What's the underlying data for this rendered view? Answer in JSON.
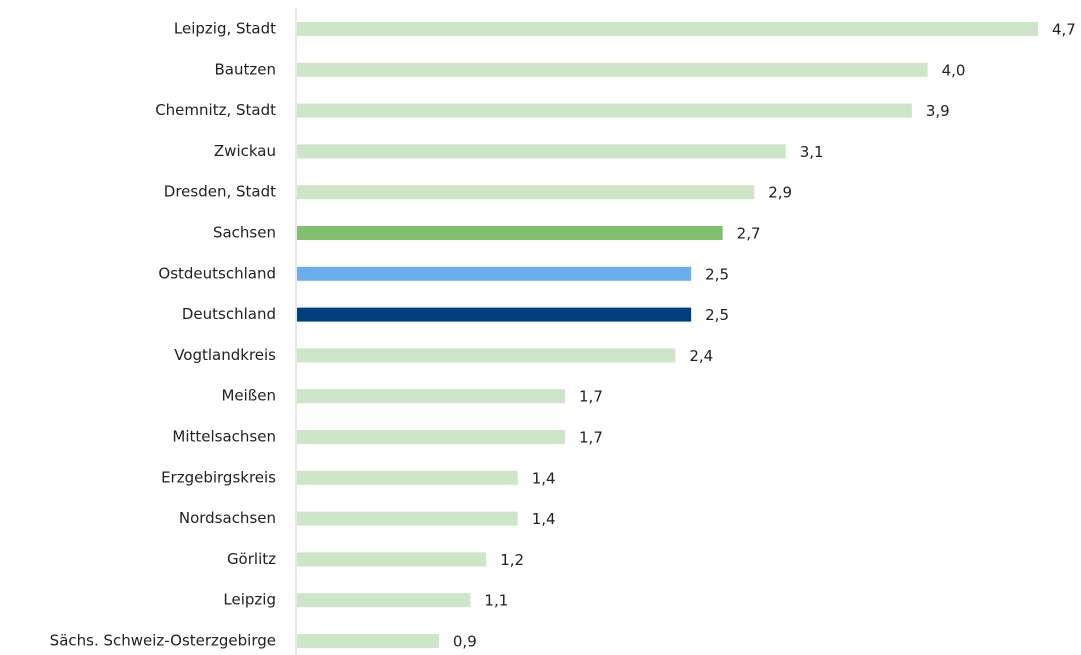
{
  "chart_data": {
    "type": "barh",
    "categories": [
      "Leipzig, Stadt",
      "Bautzen",
      "Chemnitz, Stadt",
      "Zwickau",
      "Dresden, Stadt",
      "Sachsen",
      "Ostdeutschland",
      "Deutschland",
      "Vogtlandkreis",
      "Meißen",
      "Mittelsachsen",
      "Erzgebirgskreis",
      "Nordsachsen",
      "Görlitz",
      "Leipzig",
      "Sächs. Schweiz-Osterzgebirge"
    ],
    "values": [
      4.7,
      4.0,
      3.9,
      3.1,
      2.9,
      2.7,
      2.5,
      2.5,
      2.4,
      1.7,
      1.7,
      1.4,
      1.4,
      1.2,
      1.1,
      0.9
    ],
    "value_labels": [
      "4,7",
      "4,0",
      "3,9",
      "3,1",
      "2,9",
      "2,7",
      "2,5",
      "2,5",
      "2,4",
      "1,7",
      "1,7",
      "1,4",
      "1,4",
      "1,2",
      "1,1",
      "0,9"
    ],
    "colors": [
      "#cde6c8",
      "#cde6c8",
      "#cde6c8",
      "#cde6c8",
      "#cde6c8",
      "#7fbf6e",
      "#6aaef0",
      "#003f7f",
      "#cde6c8",
      "#cde6c8",
      "#cde6c8",
      "#cde6c8",
      "#cde6c8",
      "#cde6c8",
      "#cde6c8",
      "#cde6c8"
    ]
  }
}
